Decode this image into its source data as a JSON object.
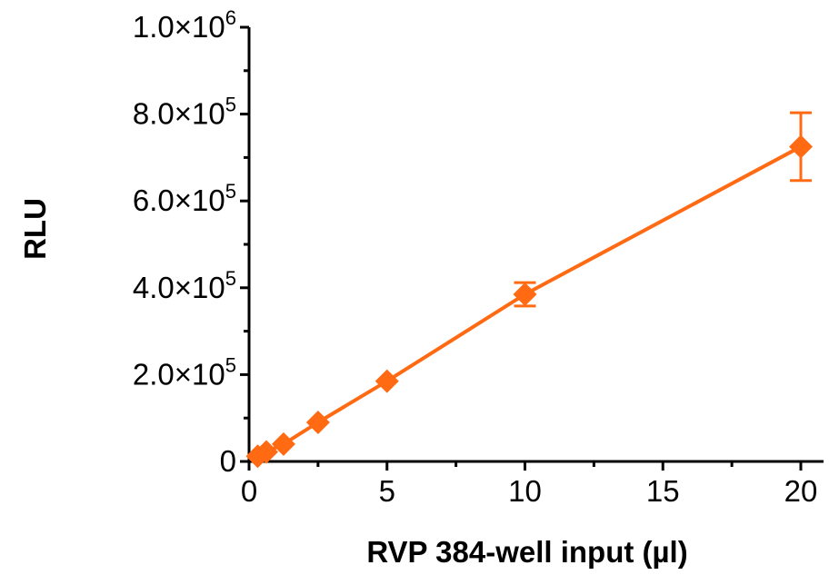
{
  "chart_data": {
    "type": "line",
    "xlabel": "RVP 384-well input (µl)",
    "ylabel": "RLU",
    "xlim": [
      0,
      20
    ],
    "ylim": [
      0,
      1000000
    ],
    "x_ticks": [
      {
        "value": 0,
        "label": "0"
      },
      {
        "value": 5,
        "label": "5"
      },
      {
        "value": 10,
        "label": "10"
      },
      {
        "value": 15,
        "label": "15"
      },
      {
        "value": 20,
        "label": "20"
      }
    ],
    "y_ticks": [
      {
        "value": 0,
        "mantissa": "0",
        "exp": ""
      },
      {
        "value": 200000,
        "mantissa": "2.0×10",
        "exp": "5"
      },
      {
        "value": 400000,
        "mantissa": "4.0×10",
        "exp": "5"
      },
      {
        "value": 600000,
        "mantissa": "6.0×10",
        "exp": "5"
      },
      {
        "value": 800000,
        "mantissa": "8.0×10",
        "exp": "5"
      },
      {
        "value": 1000000,
        "mantissa": "1.0×10",
        "exp": "6"
      }
    ],
    "series": [
      {
        "color": "#ff6a13",
        "points": [
          {
            "x": 0.3125,
            "y": 12000,
            "err": 0
          },
          {
            "x": 0.625,
            "y": 22000,
            "err": 0
          },
          {
            "x": 1.25,
            "y": 40000,
            "err": 0
          },
          {
            "x": 2.5,
            "y": 90000,
            "err": 0
          },
          {
            "x": 5,
            "y": 185000,
            "err": 0
          },
          {
            "x": 10,
            "y": 385000,
            "err": 27000
          },
          {
            "x": 20,
            "y": 725000,
            "err": 78000
          }
        ]
      }
    ],
    "grid": false,
    "legend": "none"
  }
}
